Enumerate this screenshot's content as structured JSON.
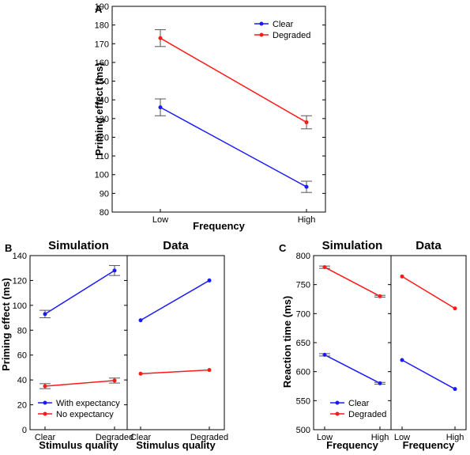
{
  "panel_letters": {
    "a": "A",
    "b": "B",
    "c": "C"
  },
  "colors": {
    "clear": "#1a1aff",
    "degraded": "#ff1a1a",
    "blue": "#1a1aff",
    "red": "#ff1a1a"
  },
  "chart_data": [
    {
      "id": "A",
      "type": "line",
      "xlabel": "Frequency",
      "ylabel": "Priming effect (ms)",
      "categories": [
        "Low",
        "High"
      ],
      "ylim": [
        80,
        190
      ],
      "yticks": [
        80,
        90,
        100,
        110,
        120,
        130,
        140,
        150,
        160,
        170,
        180,
        190
      ],
      "legend_position": "top-right",
      "series": [
        {
          "name": "Clear",
          "color": "#1a1aff",
          "values": [
            136,
            93.5
          ],
          "error": [
            4.5,
            3
          ]
        },
        {
          "name": "Degraded",
          "color": "#ff1a1a",
          "values": [
            173,
            128
          ],
          "error": [
            4.5,
            3.5
          ]
        }
      ]
    },
    {
      "id": "B-simulation",
      "type": "line",
      "title": "Simulation",
      "xlabel": "Stimulus quality",
      "ylabel": "Priming effect (ms)",
      "categories": [
        "Clear",
        "Degraded"
      ],
      "ylim": [
        0,
        140
      ],
      "yticks": [
        0,
        20,
        40,
        60,
        80,
        100,
        120,
        140
      ],
      "legend_position": "bottom-left",
      "series": [
        {
          "name": "With expectancy",
          "color": "#1a1aff",
          "values": [
            93,
            128
          ],
          "error": [
            3,
            4
          ]
        },
        {
          "name": "No expectancy",
          "color": "#ff1a1a",
          "values": [
            35,
            39.5
          ],
          "error": [
            2,
            2
          ]
        }
      ]
    },
    {
      "id": "B-data",
      "type": "line",
      "title": "Data",
      "xlabel": "Stimulus quality",
      "categories": [
        "Clear",
        "Degraded"
      ],
      "ylim": [
        0,
        140
      ],
      "series": [
        {
          "color": "#1a1aff",
          "values": [
            88,
            120
          ]
        },
        {
          "color": "#ff1a1a",
          "values": [
            45,
            48
          ]
        }
      ]
    },
    {
      "id": "C-simulation",
      "type": "line",
      "title": "Simulation",
      "xlabel": "Frequency",
      "ylabel": "Reaction time (ms)",
      "categories": [
        "Low",
        "High"
      ],
      "ylim": [
        500,
        800
      ],
      "yticks": [
        500,
        550,
        600,
        650,
        700,
        750,
        800
      ],
      "legend_position": "bottom-left",
      "series": [
        {
          "name": "Clear",
          "color": "#1a1aff",
          "values": [
            629,
            580
          ],
          "error": [
            2,
            1.5
          ]
        },
        {
          "name": "Degraded",
          "color": "#ff1a1a",
          "values": [
            780,
            730
          ],
          "error": [
            2,
            1.5
          ]
        }
      ]
    },
    {
      "id": "C-data",
      "type": "line",
      "title": "Data",
      "xlabel": "Frequency",
      "categories": [
        "Low",
        "High"
      ],
      "ylim": [
        500,
        800
      ],
      "series": [
        {
          "color": "#1a1aff",
          "values": [
            620,
            570
          ]
        },
        {
          "color": "#ff1a1a",
          "values": [
            764,
            709
          ]
        }
      ]
    }
  ]
}
